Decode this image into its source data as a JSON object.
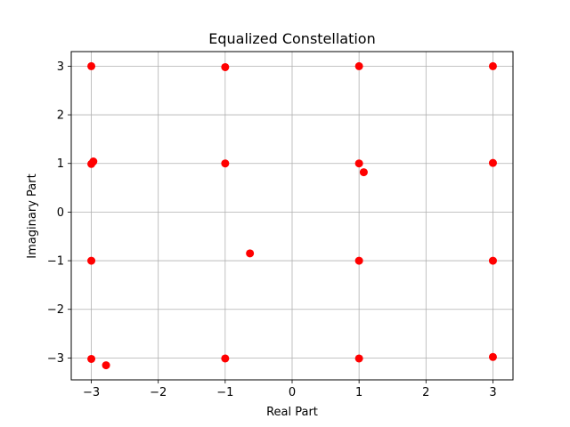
{
  "chart_data": {
    "type": "scatter",
    "title": "Equalized Constellation",
    "xlabel": "Real Part",
    "ylabel": "Imaginary Part",
    "xlim": [
      -3.3,
      3.3
    ],
    "ylim": [
      -3.45,
      3.3
    ],
    "xticks": [
      -3,
      -2,
      -1,
      0,
      1,
      2,
      3
    ],
    "yticks": [
      -3,
      -2,
      -1,
      0,
      1,
      2,
      3
    ],
    "xtick_labels": [
      "−3",
      "−2",
      "−1",
      "0",
      "1",
      "2",
      "3"
    ],
    "ytick_labels": [
      "−3",
      "−2",
      "−1",
      "0",
      "1",
      "2",
      "3"
    ],
    "grid": true,
    "marker_color": "#ff0000",
    "x": [
      -3.0,
      -1.0,
      1.0,
      3.0,
      -2.97,
      -3.0,
      -1.0,
      1.0,
      1.07,
      3.0,
      -3.0,
      -0.63,
      1.0,
      3.0,
      -3.0,
      -2.78,
      -1.0,
      1.0,
      3.0
    ],
    "y": [
      3.0,
      2.98,
      3.0,
      3.0,
      1.04,
      0.99,
      1.0,
      1.0,
      0.82,
      1.01,
      -1.0,
      -0.85,
      -1.0,
      -1.0,
      -3.02,
      -3.15,
      -3.01,
      -3.01,
      -2.98
    ]
  }
}
